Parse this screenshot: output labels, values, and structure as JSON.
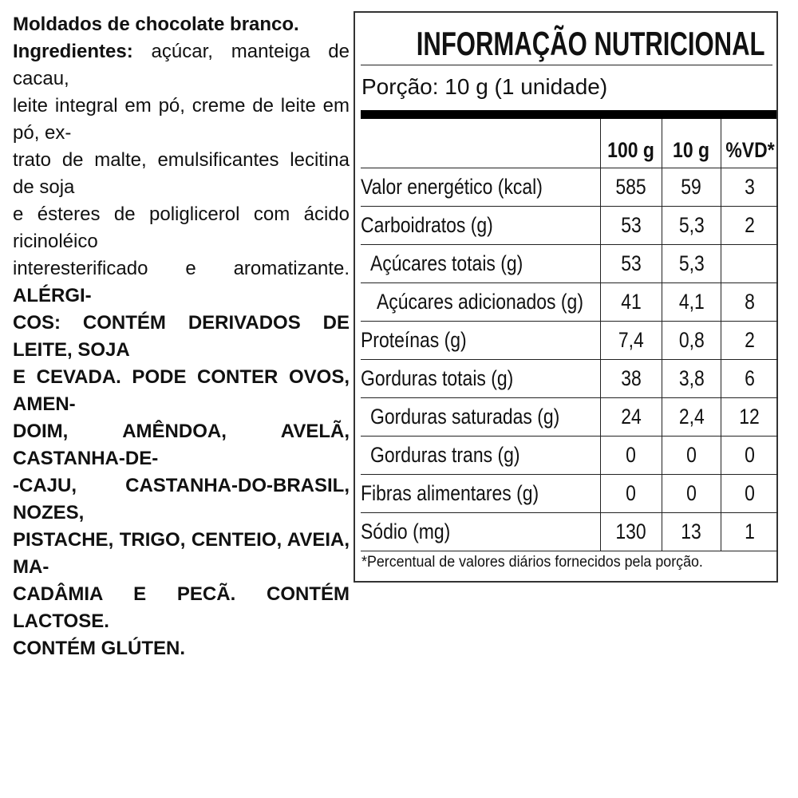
{
  "ingredients": {
    "lines": [
      [
        {
          "text": "Moldados de chocolate branco.",
          "bold": true
        }
      ],
      [
        {
          "text": "Ingredientes:",
          "bold": true
        },
        {
          "text": " açúcar, manteiga de cacau,",
          "bold": false
        }
      ],
      [
        {
          "text": "leite integral em pó, creme de leite em pó, ex-",
          "bold": false
        }
      ],
      [
        {
          "text": "trato de malte, emulsificantes lecitina de soja",
          "bold": false
        }
      ],
      [
        {
          "text": "e ésteres de poliglicerol com ácido ricinoléico",
          "bold": false
        }
      ],
      [
        {
          "text": "interesterificado e aromatizante. ",
          "bold": false
        },
        {
          "text": "ALÉRGI-",
          "bold": true
        }
      ],
      [
        {
          "text": "COS: CONTÉM DERIVADOS DE LEITE, SOJA",
          "bold": true
        }
      ],
      [
        {
          "text": "E CEVADA. PODE CONTER OVOS, AMEN-",
          "bold": true
        }
      ],
      [
        {
          "text": "DOIM, AMÊNDOA, AVELÃ, CASTANHA-DE-",
          "bold": true
        }
      ],
      [
        {
          "text": "-CAJU, CASTANHA-DO-BRASIL, NOZES,",
          "bold": true
        }
      ],
      [
        {
          "text": "PISTACHE, TRIGO, CENTEIO, AVEIA, MA-",
          "bold": true
        }
      ],
      [
        {
          "text": "CADÂMIA E PECÃ. CONTÉM LACTOSE.",
          "bold": true
        }
      ],
      [
        {
          "text": "CONTÉM GLÚTEN.",
          "bold": true
        }
      ]
    ]
  },
  "nutrition": {
    "title": "INFORMAÇÃO NUTRICIONAL",
    "portion": "Porção: 10 g (1 unidade)",
    "headers": [
      "",
      "100 g",
      "10 g",
      "%VD*"
    ],
    "rows": [
      {
        "label": "Valor energético (kcal)",
        "indent": 0,
        "v100": "585",
        "vportion": "59",
        "vd": "3"
      },
      {
        "label": "Carboidratos (g)",
        "indent": 0,
        "v100": "53",
        "vportion": "5,3",
        "vd": "2"
      },
      {
        "label": "Açúcares totais (g)",
        "indent": 1,
        "v100": "53",
        "vportion": "5,3",
        "vd": ""
      },
      {
        "label": "Açúcares adicionados (g)",
        "indent": 2,
        "v100": "41",
        "vportion": "4,1",
        "vd": "8"
      },
      {
        "label": "Proteínas (g)",
        "indent": 0,
        "v100": "7,4",
        "vportion": "0,8",
        "vd": "2"
      },
      {
        "label": "Gorduras totais (g)",
        "indent": 0,
        "v100": "38",
        "vportion": "3,8",
        "vd": "6"
      },
      {
        "label": "Gorduras saturadas (g)",
        "indent": 1,
        "v100": "24",
        "vportion": "2,4",
        "vd": "12"
      },
      {
        "label": "Gorduras trans (g)",
        "indent": 1,
        "v100": "0",
        "vportion": "0",
        "vd": "0"
      },
      {
        "label": "Fibras alimentares (g)",
        "indent": 0,
        "v100": "0",
        "vportion": "0",
        "vd": "0"
      },
      {
        "label": "Sódio (mg)",
        "indent": 0,
        "v100": "130",
        "vportion": "13",
        "vd": "1"
      }
    ],
    "footnote": "*Percentual de valores diários fornecidos pela porção."
  }
}
